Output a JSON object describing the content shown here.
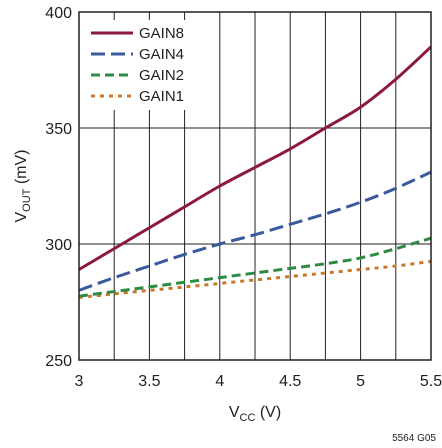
{
  "chart_data": {
    "type": "line",
    "title": "",
    "xlabel": {
      "main": "V",
      "sub": "CC",
      "unit": " (V)"
    },
    "ylabel": {
      "main": "V",
      "sub": "OUT",
      "unit": " (mV)"
    },
    "xlim": [
      3,
      5.5
    ],
    "ylim": [
      250,
      400
    ],
    "xticks": [
      3,
      3.5,
      4,
      4.5,
      5,
      5.5
    ],
    "xtick_labels": [
      "3",
      "3.5",
      "4",
      "4.5",
      "5",
      "5.5"
    ],
    "yticks": [
      250,
      300,
      350,
      400
    ],
    "ytick_labels": [
      "250",
      "300",
      "350",
      "400"
    ],
    "grid": true,
    "legend_position": "top-left",
    "code": "5564 G05",
    "x": [
      3.0,
      3.25,
      3.5,
      3.75,
      4.0,
      4.25,
      4.5,
      4.75,
      5.0,
      5.25,
      5.5
    ],
    "series": [
      {
        "name": "GAIN8",
        "color": "#8b1a3c",
        "dash": "solid",
        "values": [
          289,
          298,
          307,
          316,
          325,
          333,
          341,
          350,
          359,
          371,
          385
        ]
      },
      {
        "name": "GAIN4",
        "color": "#3a5a9c",
        "dash": "long",
        "values": [
          280,
          285.5,
          290.5,
          295.5,
          300,
          304,
          308.5,
          313,
          318,
          324,
          331
        ]
      },
      {
        "name": "GAIN2",
        "color": "#2e8b46",
        "dash": "medium",
        "values": [
          277.5,
          279.5,
          281.5,
          283.5,
          285.5,
          287.5,
          289.5,
          291.5,
          294,
          298,
          302.5
        ]
      },
      {
        "name": "GAIN1",
        "color": "#c8782a",
        "dash": "short",
        "values": [
          277,
          278.5,
          280,
          281.5,
          283,
          284.5,
          286,
          287.5,
          289,
          290.5,
          292.5
        ]
      }
    ]
  }
}
